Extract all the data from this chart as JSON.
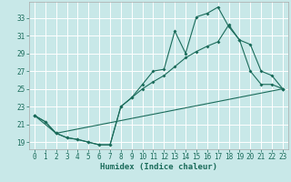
{
  "xlabel": "Humidex (Indice chaleur)",
  "bg_color": "#c8e8e8",
  "line_color": "#1a6b5a",
  "grid_color": "#ffffff",
  "xlim": [
    -0.5,
    23.5
  ],
  "ylim": [
    18.2,
    34.8
  ],
  "yticks": [
    19,
    21,
    23,
    25,
    27,
    29,
    31,
    33
  ],
  "xticks": [
    0,
    1,
    2,
    3,
    4,
    5,
    6,
    7,
    8,
    9,
    10,
    11,
    12,
    13,
    14,
    15,
    16,
    17,
    18,
    19,
    20,
    21,
    22,
    23
  ],
  "line1_x": [
    0,
    1,
    2,
    3,
    4,
    5,
    6,
    7,
    8,
    9,
    10,
    11,
    12,
    13,
    14,
    15,
    16,
    17,
    18,
    19,
    20,
    21,
    22,
    23
  ],
  "line1_y": [
    22.0,
    21.3,
    20.0,
    19.5,
    19.3,
    19.0,
    18.7,
    18.7,
    23.0,
    24.0,
    25.5,
    27.0,
    27.2,
    31.5,
    29.0,
    33.1,
    33.5,
    34.2,
    32.0,
    30.5,
    27.0,
    25.5,
    25.5,
    25.0
  ],
  "line2_x": [
    0,
    1,
    2,
    3,
    4,
    5,
    6,
    7,
    8,
    9,
    10,
    11,
    12,
    13,
    14,
    15,
    16,
    17,
    18,
    19,
    20,
    21,
    22,
    23
  ],
  "line2_y": [
    22.0,
    21.3,
    20.0,
    19.5,
    19.3,
    19.0,
    18.7,
    18.7,
    23.0,
    24.0,
    25.0,
    25.8,
    26.5,
    27.5,
    28.5,
    29.2,
    29.8,
    30.3,
    32.2,
    30.5,
    30.0,
    27.0,
    26.5,
    25.0
  ],
  "line3_x": [
    0,
    2,
    23
  ],
  "line3_y": [
    22.0,
    20.0,
    25.0
  ]
}
